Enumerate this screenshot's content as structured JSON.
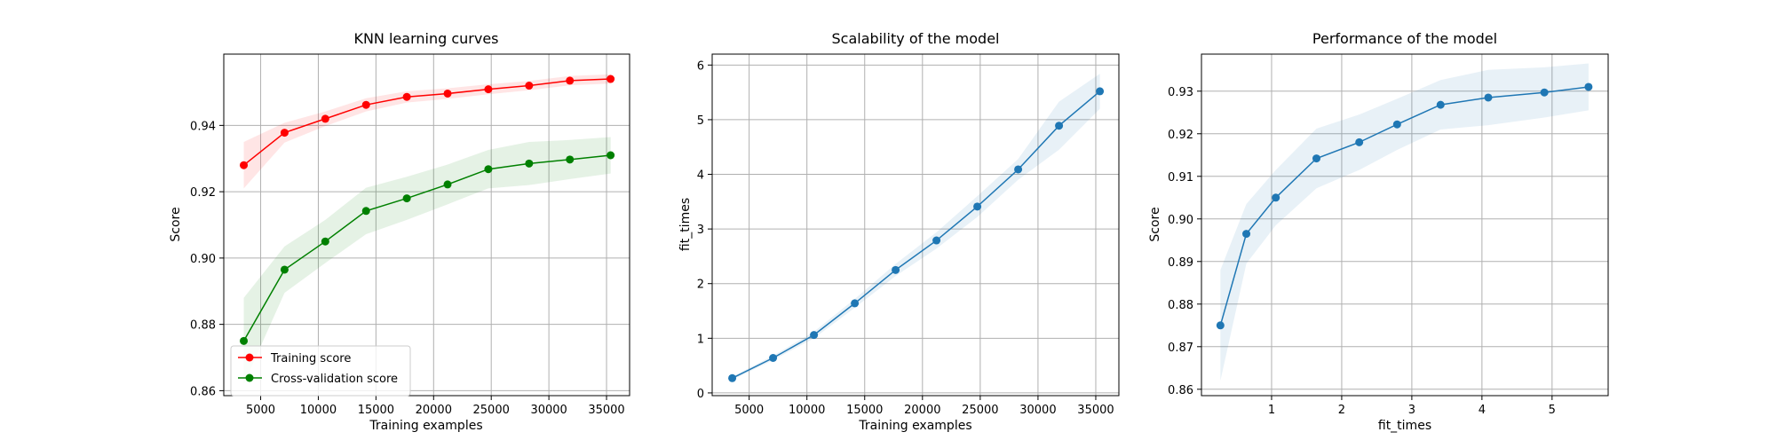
{
  "figure": {
    "charts_description": "Three side-by-side matplotlib panels"
  },
  "chart_data": [
    {
      "type": "line",
      "title": "KNN learning curves",
      "xlabel": "Training examples",
      "ylabel": "Score",
      "xlim": [
        1800,
        37000
      ],
      "ylim": [
        0.8585,
        0.9615
      ],
      "xticks": [
        5000,
        10000,
        15000,
        20000,
        25000,
        30000,
        35000
      ],
      "yticks": [
        0.86,
        0.88,
        0.9,
        0.92,
        0.94
      ],
      "ytick_labels": [
        "0.86",
        "0.88",
        "0.90",
        "0.92",
        "0.94"
      ],
      "grid": true,
      "legend": {
        "placement": "lower-left",
        "entries": [
          "Training score",
          "Cross-validation score"
        ]
      },
      "x": [
        3535,
        7071,
        10606,
        14142,
        17677,
        21213,
        24748,
        28284,
        31819,
        35355
      ],
      "series": [
        {
          "name": "Training score",
          "color": "#ff0000",
          "values": [
            0.928,
            0.9378,
            0.942,
            0.9462,
            0.9486,
            0.9496,
            0.9509,
            0.952,
            0.9535,
            0.954
          ],
          "band_low": [
            0.921,
            0.9348,
            0.9398,
            0.9442,
            0.9469,
            0.948,
            0.9494,
            0.9506,
            0.9521,
            0.9526
          ],
          "band_high": [
            0.935,
            0.9408,
            0.9442,
            0.9482,
            0.9503,
            0.9512,
            0.9524,
            0.9534,
            0.9549,
            0.9554
          ]
        },
        {
          "name": "Cross-validation score",
          "color": "#008000",
          "values": [
            0.875,
            0.8965,
            0.905,
            0.9142,
            0.918,
            0.9222,
            0.9268,
            0.9285,
            0.9297,
            0.931
          ],
          "band_low": [
            0.862,
            0.8895,
            0.8985,
            0.9072,
            0.9115,
            0.9162,
            0.921,
            0.922,
            0.9238,
            0.9255
          ],
          "band_high": [
            0.888,
            0.9035,
            0.9115,
            0.9212,
            0.9245,
            0.9282,
            0.9326,
            0.935,
            0.9356,
            0.9365
          ]
        }
      ]
    },
    {
      "type": "line",
      "title": "Scalability of the model",
      "xlabel": "Training examples",
      "ylabel": "fit_times",
      "xlim": [
        1800,
        37000
      ],
      "ylim": [
        -0.05,
        6.2
      ],
      "xticks": [
        5000,
        10000,
        15000,
        20000,
        25000,
        30000,
        35000
      ],
      "yticks": [
        0,
        1,
        2,
        3,
        4,
        5,
        6
      ],
      "ytick_labels": [
        "0",
        "1",
        "2",
        "3",
        "4",
        "5",
        "6"
      ],
      "grid": true,
      "x": [
        3535,
        7071,
        10606,
        14142,
        17677,
        21213,
        24748,
        28284,
        31819,
        35355
      ],
      "series": [
        {
          "color": "#1f77b4",
          "values": [
            0.27,
            0.64,
            1.06,
            1.64,
            2.25,
            2.79,
            3.41,
            4.09,
            4.89,
            5.52
          ],
          "band_low": [
            0.24,
            0.6,
            1.0,
            1.56,
            2.14,
            2.64,
            3.22,
            3.9,
            4.45,
            5.2
          ],
          "band_high": [
            0.3,
            0.68,
            1.12,
            1.72,
            2.36,
            2.94,
            3.6,
            4.28,
            5.33,
            5.84
          ]
        }
      ]
    },
    {
      "type": "line",
      "title": "Performance of the model",
      "xlabel": "fit_times",
      "ylabel": "Score",
      "xlim": [
        0.0,
        5.8
      ],
      "ylim": [
        0.8585,
        0.9387
      ],
      "xticks": [
        1,
        2,
        3,
        4,
        5
      ],
      "yticks": [
        0.86,
        0.87,
        0.88,
        0.89,
        0.9,
        0.91,
        0.92,
        0.93
      ],
      "ytick_labels": [
        "0.86",
        "0.87",
        "0.88",
        "0.89",
        "0.90",
        "0.91",
        "0.92",
        "0.93"
      ],
      "grid": true,
      "x": [
        0.27,
        0.64,
        1.06,
        1.64,
        2.25,
        2.79,
        3.41,
        4.09,
        4.89,
        5.52
      ],
      "series": [
        {
          "color": "#1f77b4",
          "values": [
            0.875,
            0.8965,
            0.905,
            0.9142,
            0.918,
            0.9222,
            0.9268,
            0.9285,
            0.9297,
            0.931
          ],
          "band_low": [
            0.862,
            0.8895,
            0.8985,
            0.9072,
            0.9115,
            0.9162,
            0.921,
            0.922,
            0.9238,
            0.9255
          ],
          "band_high": [
            0.888,
            0.9035,
            0.9115,
            0.9212,
            0.9245,
            0.9282,
            0.9326,
            0.935,
            0.9356,
            0.9365
          ]
        }
      ]
    }
  ]
}
